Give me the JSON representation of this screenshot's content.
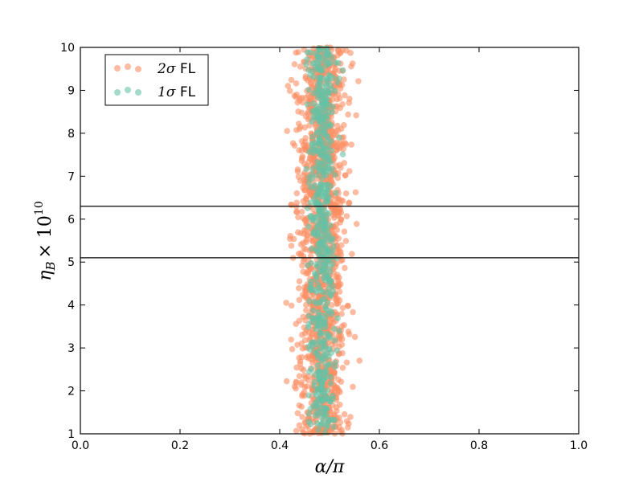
{
  "chart_data": {
    "type": "scatter",
    "xlim": [
      0.0,
      1.0
    ],
    "ylim": [
      1,
      10
    ],
    "x_ticks": [
      "0.0",
      "0.2",
      "0.4",
      "0.6",
      "0.8",
      "1.0"
    ],
    "y_ticks": [
      "1",
      "2",
      "3",
      "4",
      "5",
      "6",
      "7",
      "8",
      "9",
      "10"
    ],
    "xlabel": "α/π",
    "ylabel": "η",
    "ylabel_sub": "B",
    "ylabel_times": "× 10",
    "ylabel_exp": "10",
    "grid": false,
    "legend_position": "top-left",
    "hlines": [
      6.3,
      5.1
    ],
    "series": [
      {
        "name": "2σ FL",
        "label_symbol": "2σ",
        "label_suffix": " FL",
        "color": "#fc8d62",
        "x_center": 0.485,
        "x_spread": 0.025,
        "y_range": [
          1,
          10
        ],
        "count": 1400,
        "alpha": 0.6
      },
      {
        "name": "1σ FL",
        "label_symbol": "1σ",
        "label_suffix": " FL",
        "color": "#66c2a5",
        "x_center": 0.485,
        "x_spread": 0.013,
        "y_range": [
          1,
          10
        ],
        "count": 600,
        "alpha": 0.6
      }
    ]
  }
}
